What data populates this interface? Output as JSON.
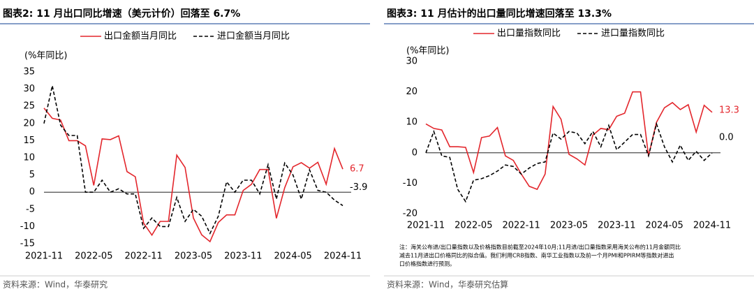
{
  "chart_data": [
    {
      "type": "line",
      "title": "图表2:  11 月出口同比增速（美元计价）回落至 6.7%",
      "y_label": "(%年同比)",
      "categories": [
        "2021-11",
        null,
        null,
        null,
        null,
        null,
        "2022-05",
        null,
        null,
        null,
        null,
        null,
        "2022-11",
        null,
        null,
        null,
        null,
        null,
        "2023-05",
        null,
        null,
        null,
        null,
        null,
        "2023-11",
        null,
        null,
        null,
        null,
        null,
        "2024-05",
        null,
        null,
        null,
        null,
        null,
        "2024-11"
      ],
      "series": [
        {
          "name": "出口金额当月同比",
          "color": "#e3262c",
          "dashed": false,
          "values": [
            24.5,
            21.5,
            21,
            15,
            15,
            13.5,
            2,
            15.5,
            15.3,
            16.4,
            6,
            4.5,
            -9,
            -12.5,
            -8.5,
            -8.5,
            10.8,
            7.2,
            -7.5,
            -12.4,
            -14.4,
            -8.8,
            -6.6,
            -6.6,
            0.5,
            2.3,
            6.6,
            6.6,
            -7.6,
            1.3,
            7.4,
            8.6,
            7,
            8.7,
            2.3,
            12.7,
            6.7
          ],
          "value_labels": [
            null,
            null,
            null,
            null,
            null,
            null,
            null,
            null,
            null,
            null,
            null,
            null,
            null,
            null,
            null,
            null,
            null,
            null,
            null,
            null,
            null,
            null,
            null,
            null,
            null,
            null,
            null,
            null,
            null,
            null,
            null,
            null,
            null,
            null,
            null,
            null,
            "6.7"
          ]
        },
        {
          "name": "进口金额当月同比",
          "color": "#000000",
          "dashed": true,
          "values": [
            20,
            31,
            19.5,
            16.5,
            16.5,
            0,
            0,
            3.5,
            0,
            1,
            -0.5,
            -0.5,
            -10.5,
            -7.5,
            -10,
            -10,
            -1.5,
            -8.5,
            -5,
            -7,
            -12,
            -7,
            3,
            0,
            3.5,
            3.5,
            -0.5,
            8,
            -2,
            8.5,
            5,
            -2,
            6.5,
            0.5,
            0,
            -2.3,
            -3.9
          ],
          "value_labels": [
            null,
            null,
            null,
            null,
            null,
            null,
            null,
            null,
            null,
            null,
            null,
            null,
            null,
            null,
            null,
            null,
            null,
            null,
            null,
            null,
            null,
            null,
            null,
            null,
            null,
            null,
            null,
            null,
            null,
            null,
            null,
            null,
            null,
            null,
            null,
            null,
            "-3.9"
          ]
        }
      ],
      "ylim": [
        -15,
        35
      ],
      "yticks": [
        35,
        30,
        25,
        20,
        15,
        10,
        5,
        0,
        -5,
        -10,
        -15
      ],
      "source": "资料来源：Wind，华泰研究"
    },
    {
      "type": "line",
      "title": "图表3:  11 月估计的出口量同比增速回落至 13.3%",
      "y_label": "(%年同比)",
      "categories": [
        "2021-11",
        null,
        null,
        null,
        null,
        null,
        "2022-05",
        null,
        null,
        null,
        null,
        null,
        "2022-11",
        null,
        null,
        null,
        null,
        null,
        "2023-05",
        null,
        null,
        null,
        null,
        null,
        "2023-11",
        null,
        null,
        null,
        null,
        null,
        "2024-05",
        null,
        null,
        null,
        null,
        null,
        "2024-11"
      ],
      "series": [
        {
          "name": "出口量指数同比",
          "color": "#e3262c",
          "dashed": false,
          "values": [
            9.5,
            8,
            7.5,
            2,
            2,
            1.8,
            -6.5,
            5,
            5.5,
            8.3,
            -1,
            -2.5,
            -7,
            -11,
            -12,
            -7,
            15.2,
            11,
            -0.5,
            -2,
            -4,
            5.8,
            8,
            7.6,
            12,
            13,
            20,
            20,
            -1,
            10,
            14.8,
            16.5,
            14.2,
            15.8,
            6.8,
            15.6,
            13.3
          ],
          "value_labels": [
            null,
            null,
            null,
            null,
            null,
            null,
            null,
            null,
            null,
            null,
            null,
            null,
            null,
            null,
            null,
            null,
            null,
            null,
            null,
            null,
            null,
            null,
            null,
            null,
            null,
            null,
            null,
            null,
            null,
            null,
            null,
            null,
            null,
            null,
            null,
            null,
            "13.3"
          ]
        },
        {
          "name": "进口量指数同比",
          "color": "#000000",
          "dashed": true,
          "values": [
            0,
            7,
            -1,
            -1.5,
            -12,
            -16,
            -9,
            -8.5,
            -7.5,
            -6,
            -4,
            -4.5,
            -7,
            -5,
            -3.5,
            -3,
            6.5,
            4.5,
            7,
            6.5,
            3,
            7,
            2,
            9,
            1,
            3.5,
            6,
            6,
            -1,
            9.5,
            2,
            -3,
            2.5,
            -2.5,
            0.5,
            -2.5,
            0
          ],
          "value_labels": [
            null,
            null,
            null,
            null,
            null,
            null,
            null,
            null,
            null,
            null,
            null,
            null,
            null,
            null,
            null,
            null,
            null,
            null,
            null,
            null,
            null,
            null,
            null,
            null,
            null,
            null,
            null,
            null,
            null,
            null,
            null,
            null,
            null,
            null,
            null,
            null,
            "0.0"
          ]
        }
      ],
      "ylim": [
        -20,
        30
      ],
      "yticks": [
        30,
        20,
        10,
        0,
        -10,
        -20
      ],
      "note": [
        "注：海关公布进/出口量指数以及价格指数目前截至2024年10月;11月进/出口量指数采用海关公布的11月金额同比",
        "减去11月进出口价格同比的拟合值。我们利用CRB指数、南华工业指数以及前一个月PMI和PPIRM等指数对进出",
        "口价格指数进行预测。"
      ],
      "source": "资料来源：Wind，华泰研究估算"
    }
  ]
}
